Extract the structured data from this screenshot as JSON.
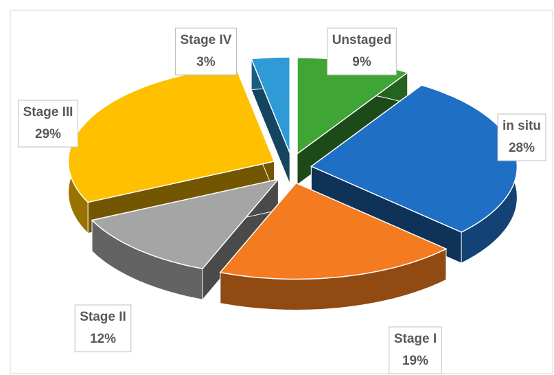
{
  "chart_data": {
    "type": "pie",
    "categories": [
      "Unstaged",
      "in situ",
      "Stage I",
      "Stage II",
      "Stage III",
      "Stage IV"
    ],
    "values": [
      9,
      28,
      19,
      12,
      29,
      3
    ],
    "value_labels": [
      "9%",
      "28%",
      "19%",
      "12%",
      "29%",
      "3%"
    ],
    "colors": [
      "#3fa535",
      "#1f6fc4",
      "#f47b20",
      "#a5a5a5",
      "#ffc000",
      "#2e9ad6"
    ],
    "exploded": true,
    "three_d": true
  }
}
